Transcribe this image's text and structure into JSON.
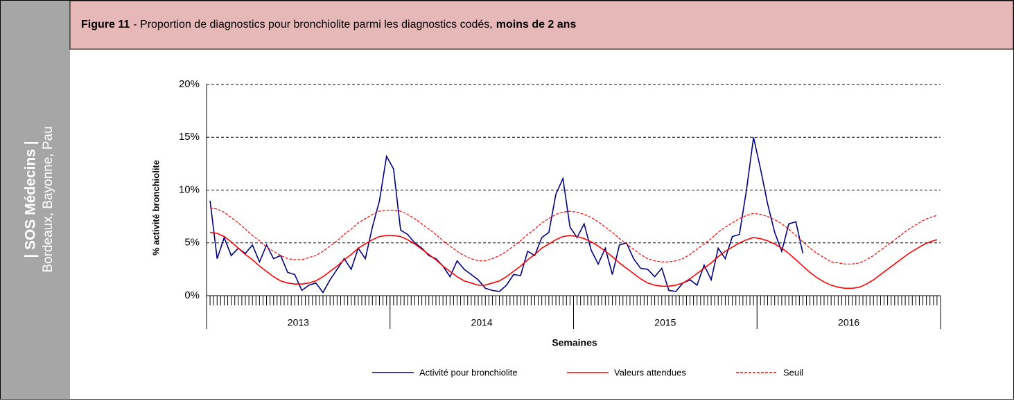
{
  "sidebar": {
    "title": "| SOS Médecins |",
    "subtitle": "Bordeaux, Bayonne, Pau"
  },
  "chart_data": {
    "type": "line",
    "figure": "Figure 11",
    "title": "-  Proportion de diagnostics pour bronchiolite parmi les diagnostics codés,",
    "title_bold": "moins de 2 ans",
    "ylabel": "% activité bronchiolite",
    "xlabel": "Semaines",
    "year_labels": [
      "2013",
      "2014",
      "2015",
      "2016"
    ],
    "ylim": [
      0,
      20
    ],
    "yticks": [
      {
        "value": 0,
        "label": "0%"
      },
      {
        "value": 5,
        "label": "5%"
      },
      {
        "value": 10,
        "label": "10%"
      },
      {
        "value": 15,
        "label": "15%"
      },
      {
        "value": 20,
        "label": "20%"
      }
    ],
    "grid": true,
    "legend": "bottom",
    "series": [
      {
        "name": "Activité pour bronchiolite",
        "color": "#000080",
        "dashed": false,
        "values": [
          9.0,
          3.5,
          5.5,
          3.8,
          4.5,
          4.0,
          4.8,
          3.2,
          4.8,
          3.5,
          3.8,
          2.2,
          2.0,
          0.5,
          1.0,
          1.2,
          0.3,
          1.5,
          2.5,
          3.5,
          2.5,
          4.5,
          3.5,
          6.5,
          9.0,
          13.2,
          12.0,
          6.2,
          5.8,
          5.0,
          4.5,
          3.8,
          3.5,
          2.8,
          1.8,
          3.3,
          2.5,
          2.0,
          1.5,
          0.7,
          0.5,
          0.4,
          1.0,
          2.0,
          1.9,
          4.2,
          3.8,
          5.5,
          6.0,
          9.6,
          11.1,
          6.5,
          5.5,
          6.8,
          4.3,
          3.0,
          4.5,
          2.0,
          4.8,
          5.0,
          3.5,
          2.6,
          2.5,
          1.8,
          2.6,
          0.5,
          0.4,
          1.2,
          1.5,
          1.0,
          2.9,
          1.5,
          4.5,
          3.5,
          5.6,
          5.8,
          10.0,
          15.0,
          12.0,
          8.7,
          6.0,
          4.2,
          6.8,
          7.0,
          4.0,
          null,
          null,
          null,
          null,
          null,
          null,
          null,
          null,
          null,
          null,
          null,
          null,
          null,
          null,
          null,
          null,
          null,
          null,
          null
        ]
      },
      {
        "name": "Valeurs attendues",
        "color": "#ff0000",
        "dashed": false,
        "values": [
          6.0,
          5.9,
          5.6,
          5.1,
          4.5,
          3.9,
          3.4,
          2.8,
          2.3,
          1.8,
          1.4,
          1.2,
          1.1,
          1.1,
          1.2,
          1.4,
          1.8,
          2.3,
          2.8,
          3.4,
          3.9,
          4.5,
          4.9,
          5.3,
          5.6,
          5.7,
          5.7,
          5.6,
          5.3,
          4.9,
          4.4,
          3.9,
          3.4,
          2.8,
          2.3,
          1.8,
          1.4,
          1.2,
          1.0,
          1.0,
          1.2,
          1.4,
          1.8,
          2.3,
          2.8,
          3.4,
          3.9,
          4.5,
          4.9,
          5.3,
          5.6,
          5.7,
          5.6,
          5.4,
          5.1,
          4.7,
          4.2,
          3.7,
          3.1,
          2.6,
          2.1,
          1.6,
          1.2,
          1.0,
          0.9,
          0.9,
          1.0,
          1.2,
          1.6,
          2.1,
          2.6,
          3.1,
          3.7,
          4.2,
          4.6,
          5.0,
          5.3,
          5.5,
          5.4,
          5.2,
          4.9,
          4.5,
          4.0,
          3.4,
          2.8,
          2.2,
          1.7,
          1.3,
          1.0,
          0.8,
          0.7,
          0.7,
          0.8,
          1.1,
          1.5,
          2.0,
          2.5,
          3.0,
          3.5,
          4.0,
          4.4,
          4.8,
          5.1,
          5.3
        ]
      },
      {
        "name": "Seuil",
        "color": "#ff0000",
        "dashed": true,
        "values": [
          8.3,
          8.2,
          7.9,
          7.4,
          6.9,
          6.3,
          5.7,
          5.2,
          4.6,
          4.2,
          3.8,
          3.5,
          3.4,
          3.4,
          3.6,
          3.8,
          4.2,
          4.7,
          5.2,
          5.8,
          6.3,
          6.9,
          7.3,
          7.7,
          8.0,
          8.1,
          8.1,
          8.0,
          7.7,
          7.3,
          6.8,
          6.3,
          5.8,
          5.2,
          4.7,
          4.2,
          3.8,
          3.5,
          3.3,
          3.3,
          3.5,
          3.8,
          4.2,
          4.7,
          5.2,
          5.8,
          6.3,
          6.9,
          7.3,
          7.7,
          7.9,
          8.0,
          7.9,
          7.7,
          7.4,
          7.0,
          6.5,
          6.0,
          5.4,
          4.9,
          4.4,
          3.9,
          3.5,
          3.3,
          3.2,
          3.2,
          3.3,
          3.5,
          3.9,
          4.4,
          4.9,
          5.4,
          6.0,
          6.5,
          6.9,
          7.3,
          7.6,
          7.8,
          7.7,
          7.5,
          7.2,
          6.8,
          6.3,
          5.7,
          5.1,
          4.5,
          4.0,
          3.6,
          3.2,
          3.1,
          3.0,
          3.0,
          3.1,
          3.4,
          3.8,
          4.3,
          4.8,
          5.3,
          5.8,
          6.3,
          6.7,
          7.1,
          7.4,
          7.6
        ]
      }
    ]
  }
}
